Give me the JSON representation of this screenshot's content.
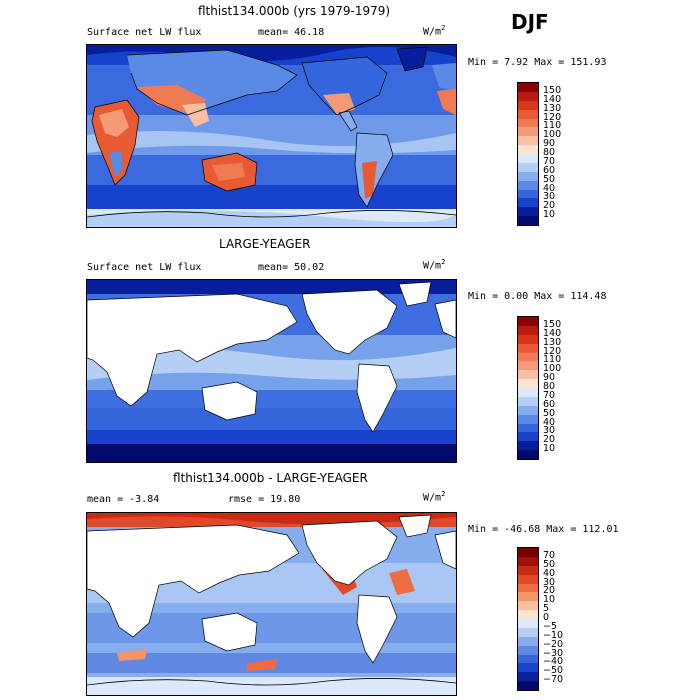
{
  "season": "DJF",
  "units": "W/m",
  "units_sup": "2",
  "panels": [
    {
      "title": "flthist134.000b (yrs 1979-1979)",
      "variable": "Surface net LW flux",
      "stat": "mean=  46.18",
      "minmax": "Min =   7.92 Max = 151.93",
      "colorbar": [
        "150",
        "140",
        "130",
        "120",
        "110",
        "100",
        "90",
        "80",
        "70",
        "60",
        "50",
        "40",
        "30",
        "20",
        "10"
      ]
    },
    {
      "title": "LARGE-YEAGER",
      "variable": "Surface net LW flux",
      "stat": "mean=  50.02",
      "minmax": "Min =   0.00 Max = 114.48",
      "colorbar": [
        "150",
        "140",
        "130",
        "120",
        "110",
        "100",
        "90",
        "80",
        "70",
        "60",
        "50",
        "40",
        "30",
        "20",
        "10"
      ]
    },
    {
      "title": "flthist134.000b - LARGE-YEAGER",
      "variable": "mean =  -3.84",
      "stat": "rmse =  19.80",
      "minmax": "Min = -46.68 Max = 112.01",
      "colorbar": [
        "70",
        "50",
        "40",
        "30",
        "20",
        "10",
        "5",
        "0",
        "−5",
        "−10",
        "−20",
        "−30",
        "−40",
        "−50",
        "−70"
      ]
    }
  ],
  "colors": {
    "abs_scale": [
      "#8b0000",
      "#b71c0c",
      "#d8351a",
      "#e85a32",
      "#f07a52",
      "#f59a76",
      "#f9bfa2",
      "#fde4d2",
      "#dce9fb",
      "#b4cff5",
      "#86aeee",
      "#5a8ae6",
      "#3466dd",
      "#1642cc",
      "#061d9c",
      "#020a6b"
    ],
    "diff_scale": [
      "#7a0000",
      "#a31008",
      "#c82a14",
      "#e14a28",
      "#ef6c43",
      "#f69367",
      "#fbbf9d",
      "#fde2cf",
      "#dce8fb",
      "#b3cdf4",
      "#89adec",
      "#5e88e2",
      "#3965d7",
      "#1a43c6",
      "#07229c",
      "#020c66"
    ],
    "land": "#ffffff",
    "ocean_mid": "#3f6ee0"
  }
}
